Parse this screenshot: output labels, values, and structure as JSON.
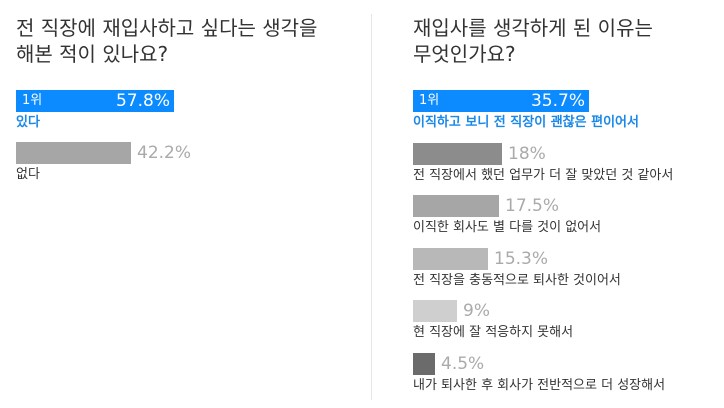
{
  "chart_data": [
    {
      "type": "bar",
      "title": [
        "전 직장에 재입사하고 싶다는 생각을",
        "해본 적이 있나요?"
      ],
      "categories": [
        "있다",
        "없다"
      ],
      "values": [
        57.8,
        42.2
      ],
      "value_labels": [
        "57.8%",
        "42.2%"
      ],
      "rank_label": "1위",
      "xlim": [
        0,
        100
      ],
      "colors": [
        "#0b8bff",
        "#a6a6a6"
      ]
    },
    {
      "type": "bar",
      "title": [
        "재입사를 생각하게 된 이유는",
        "무엇인가요?"
      ],
      "categories": [
        "이직하고 보니 전 직장이 괜찮은 편이어서",
        "전 직장에서 했던 업무가 더 잘 맞았던 것 같아서",
        "이직한 회사도 별 다를 것이 없어서",
        "전 직장을 충동적으로 퇴사한 것이어서",
        "현 직장에 잘 적응하지 못해서",
        "내가 퇴사한 후 회사가 전반적으로 더 성장해서"
      ],
      "values": [
        35.7,
        18,
        17.5,
        15.3,
        9,
        4.5
      ],
      "value_labels": [
        "35.7%",
        "18%",
        "17.5%",
        "15.3%",
        "9%",
        "4.5%"
      ],
      "rank_label": "1위",
      "xlim": [
        0,
        60
      ],
      "colors": [
        "#0b8bff",
        "#8c8c8c",
        "#a6a6a6",
        "#b8b8b8",
        "#cfcfcf",
        "#6b6b6b"
      ]
    }
  ]
}
